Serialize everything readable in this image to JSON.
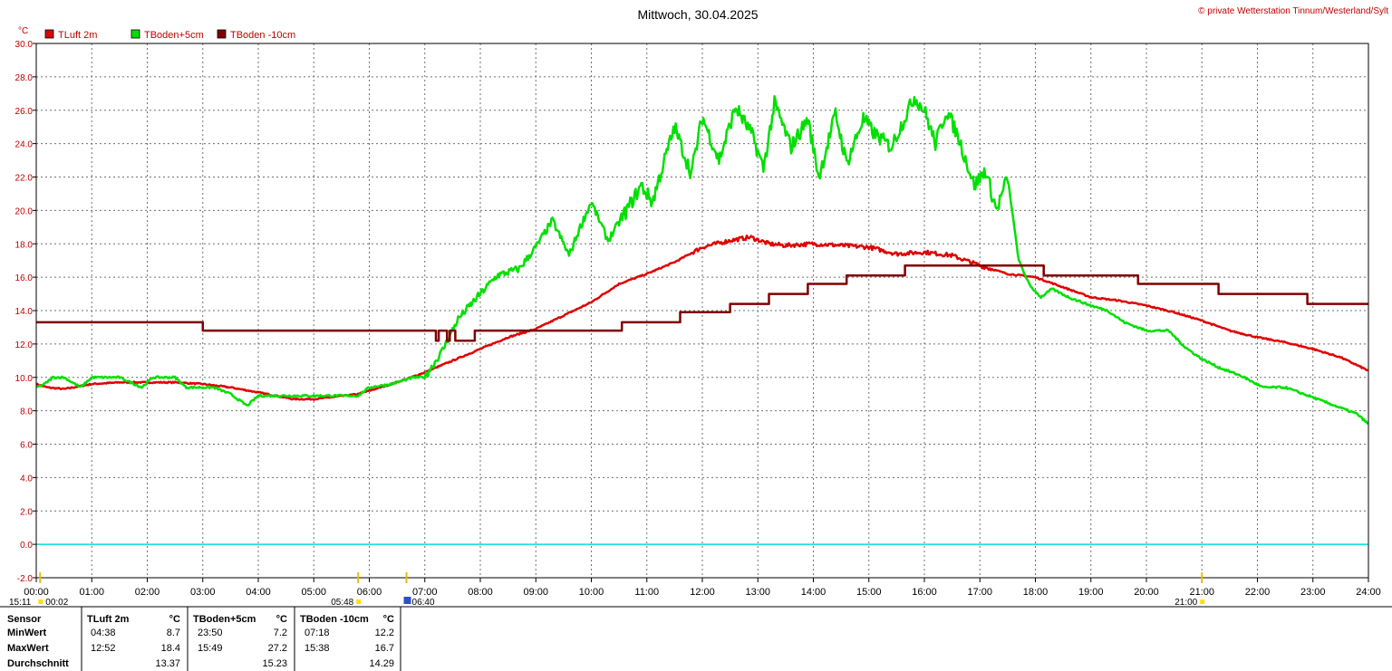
{
  "chart_data": {
    "type": "line",
    "title": "Mittwoch, 30.04.2025",
    "credit": "© private Wetterstation Tinnum/Westerland/Sylt",
    "ylabel": "°C",
    "ylim": [
      -2.0,
      30.0
    ],
    "yticks": [
      "30.0",
      "28.0",
      "26.0",
      "24.0",
      "22.0",
      "20.0",
      "18.0",
      "16.0",
      "14.0",
      "12.0",
      "10.0",
      "8.0",
      "6.0",
      "4.0",
      "2.0",
      "0.0",
      "-2.0"
    ],
    "xlim": [
      0,
      24
    ],
    "xticks": [
      "00:00",
      "01:00",
      "02:00",
      "03:00",
      "04:00",
      "05:00",
      "06:00",
      "07:00",
      "08:00",
      "09:00",
      "10:00",
      "11:00",
      "12:00",
      "13:00",
      "14:00",
      "15:00",
      "16:00",
      "17:00",
      "18:00",
      "19:00",
      "20:00",
      "21:00",
      "22:00",
      "23:00",
      "24:00"
    ],
    "grid": true,
    "legend_placement": "top-left",
    "series": [
      {
        "name": "TLuft 2m",
        "color": "#e00000",
        "style": "smooth",
        "x": [
          0,
          0.2,
          0.5,
          1,
          1.5,
          2,
          2.5,
          3,
          3.5,
          4,
          4.63,
          5,
          5.3,
          5.8,
          6,
          6.3,
          6.67,
          7,
          7.5,
          8,
          8.5,
          9,
          9.5,
          10,
          10.5,
          11,
          11.5,
          12,
          12.5,
          12.87,
          13.2,
          13.5,
          14,
          14.5,
          15,
          15.5,
          16,
          16.5,
          17,
          17.5,
          18,
          18.5,
          19,
          19.5,
          20,
          20.5,
          21,
          21.5,
          22,
          22.5,
          23,
          23.5,
          24
        ],
        "y": [
          9.6,
          9.4,
          9.3,
          9.6,
          9.7,
          9.7,
          9.7,
          9.6,
          9.4,
          9.1,
          8.7,
          8.7,
          8.8,
          9.0,
          9.2,
          9.5,
          9.9,
          10.3,
          11.0,
          11.7,
          12.4,
          12.9,
          13.7,
          14.5,
          15.6,
          16.2,
          16.9,
          17.8,
          18.2,
          18.4,
          18.0,
          17.9,
          18.0,
          17.9,
          17.8,
          17.4,
          17.5,
          17.3,
          16.7,
          16.2,
          16.0,
          15.4,
          14.8,
          14.6,
          14.3,
          13.9,
          13.4,
          12.8,
          12.4,
          12.1,
          11.7,
          11.2,
          10.4
        ]
      },
      {
        "name": "TBoden+5cm",
        "color": "#00e000",
        "style": "noisy",
        "x": [
          0,
          0.15,
          0.3,
          0.5,
          0.8,
          1.0,
          1.5,
          1.9,
          2.1,
          2.5,
          2.7,
          3.0,
          3.2,
          3.5,
          3.8,
          4.0,
          4.3,
          5.0,
          5.5,
          5.8,
          6.0,
          6.4,
          6.8,
          7.0,
          7.3,
          7.6,
          8.0,
          8.3,
          8.7,
          9.0,
          9.3,
          9.6,
          9.8,
          10.0,
          10.3,
          10.6,
          10.9,
          11.1,
          11.3,
          11.5,
          11.8,
          12.0,
          12.3,
          12.6,
          12.9,
          13.1,
          13.3,
          13.6,
          13.9,
          14.1,
          14.4,
          14.6,
          14.9,
          15.1,
          15.4,
          15.6,
          15.82,
          16.0,
          16.2,
          16.4,
          16.6,
          16.9,
          17.1,
          17.3,
          17.5,
          17.7,
          17.9,
          18.1,
          18.3,
          18.6,
          19.0,
          19.3,
          19.6,
          20.0,
          20.4,
          20.7,
          21.0,
          21.3,
          21.7,
          22.1,
          22.5,
          23.0,
          23.4,
          23.8,
          24.0
        ],
        "y": [
          9.4,
          9.6,
          10.0,
          10.0,
          9.4,
          10.0,
          10.0,
          9.4,
          10.0,
          10.0,
          9.4,
          9.4,
          9.4,
          9.0,
          8.3,
          8.9,
          8.9,
          8.9,
          8.9,
          8.9,
          9.4,
          9.6,
          10.0,
          10.0,
          11.5,
          13.5,
          15.0,
          16.1,
          16.5,
          17.8,
          19.4,
          17.3,
          19.0,
          20.5,
          18.2,
          19.8,
          21.5,
          20.5,
          22.8,
          25.0,
          22.2,
          25.6,
          23.0,
          26.2,
          24.5,
          22.5,
          26.4,
          23.8,
          25.5,
          22.0,
          25.8,
          22.8,
          25.5,
          24.6,
          23.8,
          25.2,
          26.8,
          26.0,
          24.0,
          26.0,
          24.5,
          21.5,
          22.4,
          20.0,
          22.0,
          17.0,
          15.5,
          14.8,
          15.3,
          14.8,
          14.3,
          14.0,
          13.3,
          12.8,
          12.8,
          11.8,
          11.1,
          10.6,
          10.1,
          9.4,
          9.4,
          8.8,
          8.3,
          7.8,
          7.2
        ]
      },
      {
        "name": "TBoden -10cm",
        "color": "#800000",
        "style": "step",
        "x": [
          0,
          2.75,
          3.0,
          6.9,
          7.2,
          7.25,
          7.4,
          7.45,
          7.55,
          7.6,
          7.85,
          7.9,
          8.05,
          10.5,
          10.55,
          11.5,
          11.6,
          12.45,
          12.5,
          13.1,
          13.2,
          13.85,
          13.9,
          14.55,
          14.6,
          15.6,
          15.65,
          18.1,
          18.15,
          19.8,
          19.85,
          21.2,
          21.3,
          22.8,
          22.9,
          24.0
        ],
        "y": [
          13.3,
          13.3,
          12.8,
          12.8,
          12.2,
          12.8,
          12.2,
          12.8,
          12.2,
          12.2,
          12.2,
          12.8,
          12.8,
          12.8,
          13.3,
          13.3,
          13.9,
          13.9,
          14.4,
          14.4,
          15.0,
          15.0,
          15.6,
          15.6,
          16.1,
          16.1,
          16.7,
          16.7,
          16.1,
          16.1,
          15.6,
          15.6,
          15.0,
          15.0,
          14.4,
          14.4
        ]
      },
      {
        "name": "",
        "color": "#00e0e0",
        "style": "flat",
        "x": [
          0,
          24
        ],
        "y": [
          0,
          0
        ]
      }
    ],
    "annotations": [
      {
        "x": 0.07,
        "label": "15:11",
        "x2label": "00:02"
      },
      {
        "x": 5.8,
        "label": "05:48"
      },
      {
        "x": 6.67,
        "label": "06:40"
      },
      {
        "x": 21.0,
        "label": "21:00"
      }
    ]
  },
  "stats_table": {
    "headers": [
      "Sensor",
      "TLuft 2m",
      "°C",
      "TBoden+5cm",
      "°C",
      "TBoden -10cm",
      "°C"
    ],
    "rows": [
      {
        "label": "MinWert",
        "t1": "04:38",
        "v1": "8.7",
        "t2": "23:50",
        "v2": "7.2",
        "t3": "07:18",
        "v3": "12.2"
      },
      {
        "label": "MaxWert",
        "t1": "12:52",
        "v1": "18.4",
        "t2": "15:49",
        "v2": "27.2",
        "t3": "15:38",
        "v3": "16.7"
      },
      {
        "label": "Durchschnitt",
        "t1": "",
        "v1": "13.37",
        "t2": "",
        "v2": "15.23",
        "t3": "",
        "v3": "14.29"
      }
    ]
  }
}
